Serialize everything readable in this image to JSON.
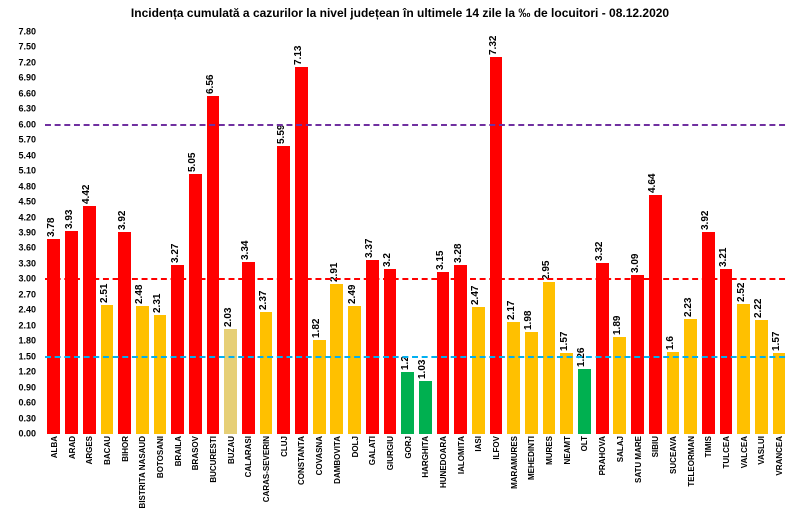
{
  "chart": {
    "type": "bar",
    "title": "Incidența cumulată a cazurilor la nivel județean în ultimele 14 zile la ‰ de locuitori - 08.12.2020",
    "title_fontsize": 12,
    "background_color": "#ffffff",
    "ylim": [
      0,
      7.8
    ],
    "yticks": [
      0.0,
      0.3,
      0.6,
      0.9,
      1.2,
      1.5,
      1.8,
      2.1,
      2.4,
      2.7,
      3.0,
      3.3,
      3.6,
      3.9,
      4.2,
      4.5,
      4.8,
      5.1,
      5.4,
      5.7,
      6.0,
      6.3,
      6.6,
      6.9,
      7.2,
      7.5,
      7.8
    ],
    "tick_fontsize": 9,
    "bar_label_fontsize": 10,
    "x_label_fontsize": 8,
    "colors": {
      "red": "#ff0000",
      "yellow": "#ffc000",
      "green": "#00b050",
      "yellow_muted": "#e6cf76"
    },
    "reference_lines": [
      {
        "value": 1.5,
        "color": "#00b0f0",
        "width": 2,
        "dash": "8 5"
      },
      {
        "value": 3.0,
        "color": "#ff0000",
        "width": 2,
        "dash": "8 5"
      },
      {
        "value": 6.0,
        "color": "#7030a0",
        "width": 2,
        "dash": "8 5"
      }
    ],
    "data": [
      {
        "label": "ALBA",
        "value": 3.78,
        "color": "#ff0000"
      },
      {
        "label": "ARAD",
        "value": 3.93,
        "color": "#ff0000"
      },
      {
        "label": "ARGES",
        "value": 4.42,
        "color": "#ff0000"
      },
      {
        "label": "BACAU",
        "value": 2.51,
        "color": "#ffc000"
      },
      {
        "label": "BIHOR",
        "value": 3.92,
        "color": "#ff0000"
      },
      {
        "label": "BISTRITA NASAUD",
        "value": 2.48,
        "color": "#ffc000"
      },
      {
        "label": "BOTOSANI",
        "value": 2.31,
        "color": "#ffc000"
      },
      {
        "label": "BRAILA",
        "value": 3.27,
        "color": "#ff0000"
      },
      {
        "label": "BRASOV",
        "value": 5.05,
        "color": "#ff0000"
      },
      {
        "label": "BUCURESTI",
        "value": 6.56,
        "color": "#ff0000"
      },
      {
        "label": "BUZAU",
        "value": 2.03,
        "color": "#e6cf76"
      },
      {
        "label": "CALARASI",
        "value": 3.34,
        "color": "#ff0000"
      },
      {
        "label": "CARAS-SEVERIN",
        "value": 2.37,
        "color": "#ffc000"
      },
      {
        "label": "CLUJ",
        "value": 5.59,
        "color": "#ff0000"
      },
      {
        "label": "CONSTANTA",
        "value": 7.13,
        "color": "#ff0000"
      },
      {
        "label": "COVASNA",
        "value": 1.82,
        "color": "#ffc000"
      },
      {
        "label": "DAMBOVITA",
        "value": 2.91,
        "color": "#ffc000"
      },
      {
        "label": "DOLJ",
        "value": 2.49,
        "color": "#ffc000"
      },
      {
        "label": "GALATI",
        "value": 3.37,
        "color": "#ff0000"
      },
      {
        "label": "GIURGIU",
        "value": 3.2,
        "color": "#ff0000"
      },
      {
        "label": "GORJ",
        "value": 1.2,
        "color": "#00b050"
      },
      {
        "label": "HARGHITA",
        "value": 1.03,
        "color": "#00b050"
      },
      {
        "label": "HUNEDOARA",
        "value": 3.15,
        "color": "#ff0000"
      },
      {
        "label": "IALOMITA",
        "value": 3.28,
        "color": "#ff0000"
      },
      {
        "label": "IASI",
        "value": 2.47,
        "color": "#ffc000"
      },
      {
        "label": "ILFOV",
        "value": 7.32,
        "color": "#ff0000"
      },
      {
        "label": "MARAMURES",
        "value": 2.17,
        "color": "#ffc000"
      },
      {
        "label": "MEHEDINTI",
        "value": 1.98,
        "color": "#ffc000"
      },
      {
        "label": "MURES",
        "value": 2.95,
        "color": "#ffc000"
      },
      {
        "label": "NEAMT",
        "value": 1.57,
        "color": "#ffc000"
      },
      {
        "label": "OLT",
        "value": 1.26,
        "color": "#00b050"
      },
      {
        "label": "PRAHOVA",
        "value": 3.32,
        "color": "#ff0000"
      },
      {
        "label": "SALAJ",
        "value": 1.89,
        "color": "#ffc000"
      },
      {
        "label": "SATU MARE",
        "value": 3.09,
        "color": "#ff0000"
      },
      {
        "label": "SIBIU",
        "value": 4.64,
        "color": "#ff0000"
      },
      {
        "label": "SUCEAVA",
        "value": 1.6,
        "color": "#ffc000"
      },
      {
        "label": "TELEORMAN",
        "value": 2.23,
        "color": "#ffc000"
      },
      {
        "label": "TIMIS",
        "value": 3.92,
        "color": "#ff0000"
      },
      {
        "label": "TULCEA",
        "value": 3.21,
        "color": "#ff0000"
      },
      {
        "label": "VALCEA",
        "value": 2.52,
        "color": "#ffc000"
      },
      {
        "label": "VASLUI",
        "value": 2.22,
        "color": "#ffc000"
      },
      {
        "label": "VRANCEA",
        "value": 1.57,
        "color": "#ffc000"
      }
    ]
  }
}
